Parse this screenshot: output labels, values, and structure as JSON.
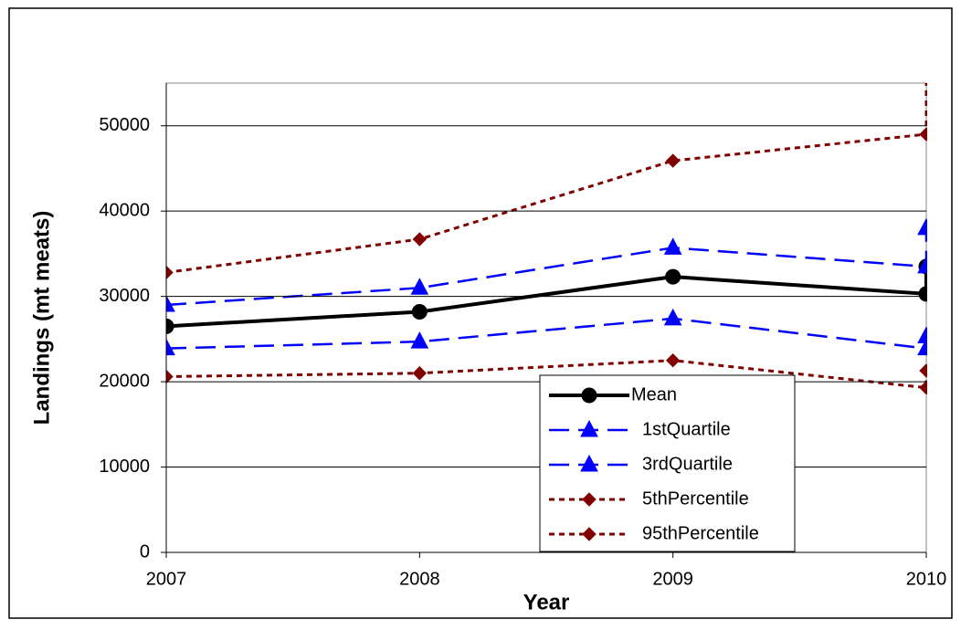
{
  "chart_data": {
    "type": "line",
    "x_label": "Year",
    "y_label": "Landings (mt meats)",
    "x": [
      2007,
      2008,
      2009,
      2010,
      2010
    ],
    "xlim": [
      2007,
      2010
    ],
    "xticks": [
      2007,
      2008,
      2009,
      2010
    ],
    "ylim": [
      0,
      55000
    ],
    "yticks": [
      0,
      10000,
      20000,
      30000,
      40000,
      50000
    ],
    "grid": true,
    "series": [
      {
        "name": "Mean",
        "color": "#000000",
        "dash": "solid",
        "marker": "circle",
        "values": [
          26500,
          28200,
          32300,
          30300,
          33500
        ]
      },
      {
        "name": "1stQuartile",
        "color": "#0000ff",
        "dash": "dashed",
        "marker": "triangle",
        "values": [
          23900,
          24700,
          27400,
          23900,
          25300
        ]
      },
      {
        "name": "3rdQuartile",
        "color": "#0000ff",
        "dash": "dashed",
        "marker": "triangle",
        "values": [
          29000,
          31000,
          35700,
          33500,
          38000
        ]
      },
      {
        "name": "5thPercentile",
        "color": "#800000",
        "dash": "dotted",
        "marker": "diamond",
        "values": [
          20600,
          21000,
          22500,
          19300,
          21300
        ]
      },
      {
        "name": "95thPercentile",
        "color": "#800000",
        "dash": "dotted",
        "marker": "diamond",
        "values": [
          32800,
          36700,
          45900,
          49000,
          58000
        ]
      }
    ]
  }
}
